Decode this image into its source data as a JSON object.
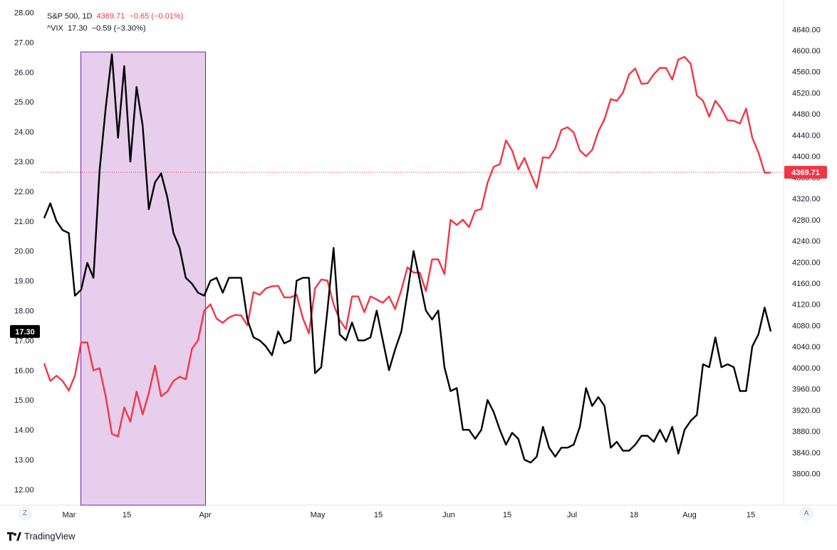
{
  "legend": {
    "sp500": {
      "symbol": "S&P 500, 1D",
      "value": "4369.71",
      "change": "−0.65 (−0.01%)"
    },
    "vix": {
      "symbol": "^VIX",
      "value": "17.30",
      "change": "−0.59 (−3.30%)"
    }
  },
  "price_tags": {
    "sp500": "4369.71",
    "vix": "17.30"
  },
  "buttons": {
    "zoom": "Z",
    "auto": "A"
  },
  "brand": {
    "label": "TradingView"
  },
  "colors": {
    "sp500": "#f23645",
    "vix": "#000000",
    "highlight": "#e6ceec",
    "highlight_border": "#7b1fa2"
  },
  "chart_data": {
    "type": "line",
    "x_tick_labels": [
      "Mar",
      "15",
      "Apr",
      "May",
      "15",
      "Jun",
      "15",
      "Jul",
      "18",
      "Aug",
      "15"
    ],
    "left_axis": {
      "ticks": [
        "28.00",
        "27.00",
        "26.00",
        "25.00",
        "24.00",
        "23.00",
        "22.00",
        "21.00",
        "20.00",
        "19.00",
        "18.00",
        "17.00",
        "16.00",
        "15.00",
        "14.00",
        "13.00",
        "12.00"
      ],
      "ylim": [
        11.6,
        28.2
      ]
    },
    "right_axis": {
      "ticks": [
        "4640.00",
        "4600.00",
        "4560.00",
        "4520.00",
        "4480.00",
        "4440.00",
        "4400.00",
        "4360.00",
        "4320.00",
        "4280.00",
        "4240.00",
        "4200.00",
        "4160.00",
        "4120.00",
        "4080.00",
        "4040.00",
        "4000.00",
        "3960.00",
        "3920.00",
        "3880.00",
        "3840.00",
        "3800.00"
      ],
      "ylim": [
        3782,
        4690
      ]
    },
    "highlight_range": {
      "from": "Mar 3",
      "to": "Mar 31"
    },
    "series": [
      {
        "name": "^VIX",
        "axis": "left",
        "color": "#000000",
        "values": [
          21.1,
          21.6,
          21.0,
          20.7,
          20.6,
          18.5,
          18.7,
          19.6,
          19.1,
          22.7,
          24.8,
          26.6,
          23.8,
          26.2,
          23.0,
          25.5,
          24.2,
          21.4,
          22.3,
          22.6,
          21.8,
          20.6,
          20.1,
          19.1,
          18.9,
          18.6,
          18.5,
          19.0,
          19.1,
          18.6,
          19.1,
          19.1,
          19.1,
          17.7,
          17.1,
          17.0,
          16.8,
          16.5,
          17.3,
          16.9,
          17.0,
          19.0,
          19.1,
          19.1,
          15.9,
          16.1,
          18.0,
          20.1,
          17.2,
          17.0,
          17.6,
          17.0,
          17.0,
          17.1,
          18.0,
          17.0,
          16.0,
          16.7,
          17.3,
          18.6,
          20.0,
          19.0,
          18.0,
          17.7,
          18.0,
          16.1,
          15.3,
          15.4,
          14.0,
          14.0,
          13.7,
          14.0,
          15.0,
          14.6,
          14.0,
          13.5,
          13.9,
          13.7,
          13.0,
          12.9,
          13.1,
          14.1,
          13.4,
          13.1,
          13.4,
          13.4,
          13.5,
          14.1,
          15.4,
          14.8,
          15.1,
          14.8,
          13.4,
          13.6,
          13.3,
          13.3,
          13.5,
          13.8,
          13.8,
          13.6,
          14.0,
          13.6,
          14.1,
          13.2,
          14.0,
          14.3,
          14.5,
          16.2,
          16.1,
          17.1,
          16.1,
          16.2,
          16.1,
          15.3,
          15.3,
          16.8,
          17.2,
          18.1,
          17.3
        ]
      },
      {
        "name": "S&P 500",
        "axis": "right",
        "color": "#f23645",
        "values": [
          4008,
          3975,
          3985,
          3975,
          3957,
          3985,
          4048,
          4048,
          3995,
          3999,
          3946,
          3875,
          3870,
          3925,
          3898,
          3955,
          3912,
          3952,
          4004,
          3946,
          3955,
          3975,
          3983,
          3978,
          4036,
          4052,
          4108,
          4120,
          4093,
          4085,
          4095,
          4100,
          4099,
          4080,
          4143,
          4138,
          4150,
          4154,
          4155,
          4133,
          4133,
          4138,
          4094,
          4065,
          4150,
          4167,
          4165,
          4120,
          4090,
          4073,
          4135,
          4135,
          4105,
          4135,
          4129,
          4123,
          4135,
          4111,
          4147,
          4190,
          4180,
          4180,
          4145,
          4205,
          4205,
          4177,
          4280,
          4270,
          4280,
          4266,
          4297,
          4300,
          4350,
          4380,
          4385,
          4430,
          4411,
          4375,
          4397,
          4367,
          4340,
          4398,
          4397,
          4415,
          4450,
          4455,
          4445,
          4411,
          4400,
          4412,
          4447,
          4470,
          4508,
          4505,
          4520,
          4555,
          4566,
          4537,
          4538,
          4555,
          4567,
          4567,
          4545,
          4583,
          4588,
          4575,
          4515,
          4505,
          4475,
          4505,
          4490,
          4468,
          4467,
          4462,
          4490,
          4435,
          4407,
          4369,
          4369
        ]
      }
    ]
  }
}
